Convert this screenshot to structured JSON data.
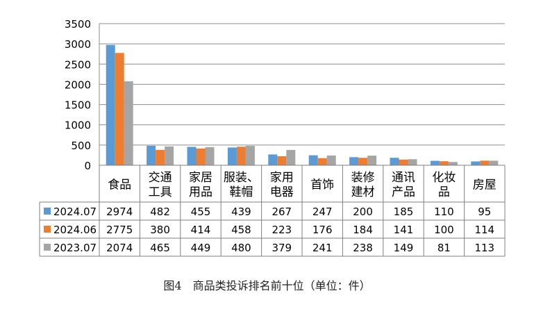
{
  "chart_data": {
    "type": "bar",
    "categories": [
      [
        "食品"
      ],
      [
        "交通",
        "工具"
      ],
      [
        "家居",
        "用品"
      ],
      [
        "服装、",
        "鞋帽"
      ],
      [
        "家用",
        "电器"
      ],
      [
        "首饰"
      ],
      [
        "装修",
        "建材"
      ],
      [
        "通讯",
        "产品"
      ],
      [
        "化妆",
        "品"
      ],
      [
        "房屋"
      ]
    ],
    "series": [
      {
        "name": "2024.07",
        "color": "#5B9BD5",
        "values": [
          2974,
          482,
          455,
          439,
          267,
          247,
          200,
          185,
          110,
          95
        ]
      },
      {
        "name": "2024.06",
        "color": "#ED7D31",
        "values": [
          2775,
          380,
          414,
          458,
          223,
          176,
          184,
          141,
          100,
          114
        ]
      },
      {
        "name": "2023.07",
        "color": "#A5A5A5",
        "values": [
          2074,
          465,
          449,
          480,
          379,
          241,
          238,
          149,
          81,
          113
        ]
      }
    ],
    "ylim": [
      0,
      3500
    ],
    "yticks": [
      "0",
      "500",
      "1000",
      "1500",
      "2000",
      "2500",
      "3000",
      "3500"
    ],
    "grid": true,
    "legend": "data-table-rows",
    "title": ""
  },
  "caption": "图4　商品类投诉排名前十位（单位：件）"
}
